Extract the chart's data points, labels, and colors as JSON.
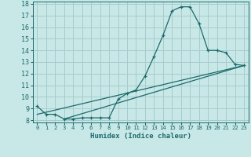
{
  "xlabel": "Humidex (Indice chaleur)",
  "xlim": [
    -0.5,
    23.5
  ],
  "ylim": [
    7.8,
    18.2
  ],
  "xticks": [
    0,
    1,
    2,
    3,
    4,
    5,
    6,
    7,
    8,
    9,
    10,
    11,
    12,
    13,
    14,
    15,
    16,
    17,
    18,
    19,
    20,
    21,
    22,
    23
  ],
  "yticks": [
    8,
    9,
    10,
    11,
    12,
    13,
    14,
    15,
    16,
    17,
    18
  ],
  "bg_color": "#c8e8e8",
  "line_color": "#1a6b6b",
  "grid_color": "#a8cccc",
  "line1_x": [
    0,
    1,
    2,
    3,
    4,
    5,
    6,
    7,
    8,
    9,
    10,
    11,
    12,
    13,
    14,
    15,
    16,
    17,
    18,
    19,
    20,
    21,
    22,
    23
  ],
  "line1_y": [
    9.2,
    8.5,
    8.5,
    8.1,
    8.1,
    8.2,
    8.2,
    8.2,
    8.2,
    9.8,
    10.3,
    10.6,
    11.8,
    13.5,
    15.3,
    17.4,
    17.75,
    17.75,
    16.3,
    14.0,
    14.0,
    13.8,
    12.8,
    12.7
  ],
  "line2_x": [
    0,
    23
  ],
  "line2_y": [
    8.5,
    12.7
  ],
  "line3_x": [
    3,
    23
  ],
  "line3_y": [
    8.1,
    12.7
  ]
}
